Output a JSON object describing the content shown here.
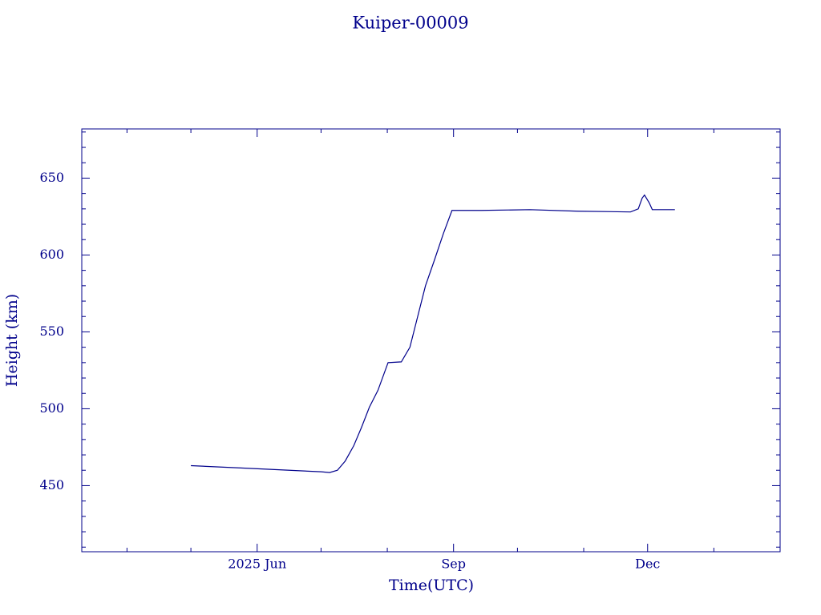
{
  "chart_data": {
    "type": "line",
    "title": "Kuiper-00009",
    "x_label": "Time(UTC)",
    "y_label": "Height (km)",
    "x": [
      2025.329,
      2025.393,
      2025.496,
      2025.507,
      2025.517,
      2025.527,
      2025.538,
      2025.548,
      2025.558,
      2025.569,
      2025.582,
      2025.599,
      2025.61,
      2025.62,
      2025.63,
      2025.641,
      2025.653,
      2025.664,
      2025.702,
      2025.764,
      2025.826,
      2025.893,
      2025.903,
      2025.908,
      2025.911,
      2025.917,
      2025.921,
      2025.95
    ],
    "values": [
      463,
      461.5,
      459,
      458.5,
      460,
      466,
      476,
      488,
      501,
      512,
      530,
      530.5,
      540,
      560,
      580,
      596,
      614,
      629,
      629,
      629.5,
      628.5,
      628,
      630,
      637,
      639,
      634,
      629.5,
      629.5
    ],
    "color": "#00008b",
    "xlim": [
      2025.189,
      2026.085
    ],
    "xticks": [
      {
        "value": 2025.414,
        "label": "2025 Jun"
      },
      {
        "value": 2025.666,
        "label": "Sep"
      },
      {
        "value": 2025.915,
        "label": "Dec"
      }
    ],
    "x_minor_ticks": [
      2025.247,
      2025.329,
      2025.496,
      2025.581,
      2025.748,
      2025.833,
      2026.0
    ],
    "ylim": [
      407,
      682
    ],
    "yticks": [
      450,
      500,
      550,
      600,
      650
    ],
    "y_minor_ticks": [
      410,
      420,
      430,
      440,
      460,
      470,
      480,
      490,
      510,
      520,
      530,
      540,
      560,
      570,
      580,
      590,
      610,
      620,
      630,
      640,
      660,
      670,
      680
    ]
  }
}
